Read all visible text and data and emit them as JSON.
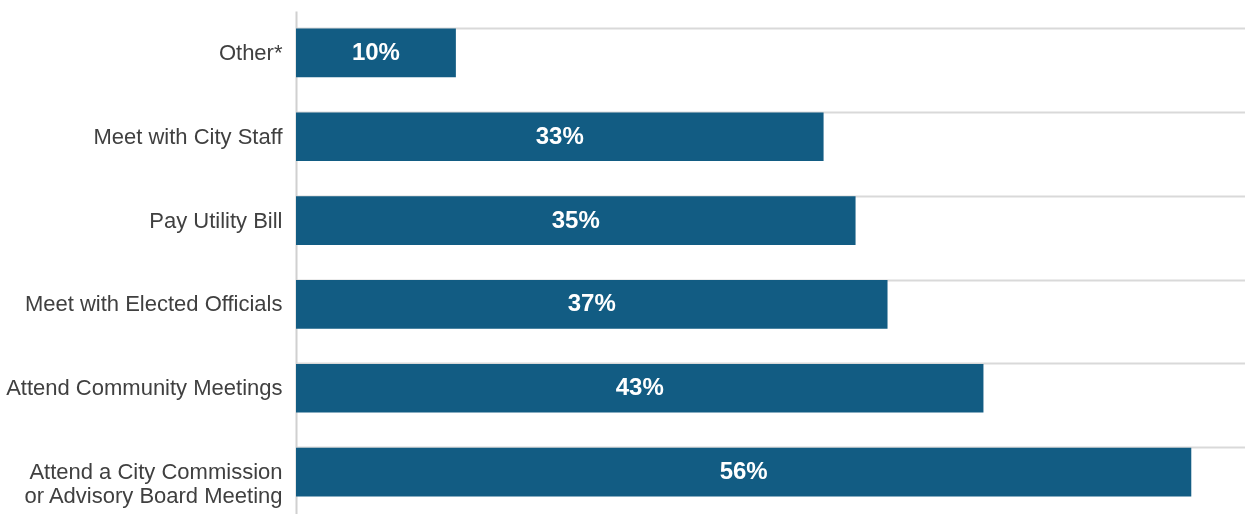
{
  "chart_data": {
    "type": "bar",
    "orientation": "horizontal",
    "categories": [
      "Other*",
      "Meet with City Staff",
      "Pay Utility Bill",
      "Meet with Elected Officials",
      "Attend Community Meetings",
      "Attend a City Commission\nor Advisory Board Meeting"
    ],
    "values": [
      10,
      33,
      35,
      37,
      43,
      56
    ],
    "value_labels": [
      "10%",
      "33%",
      "35%",
      "37%",
      "43%",
      "56%"
    ],
    "color": "#125c83",
    "grid": "y"
  }
}
